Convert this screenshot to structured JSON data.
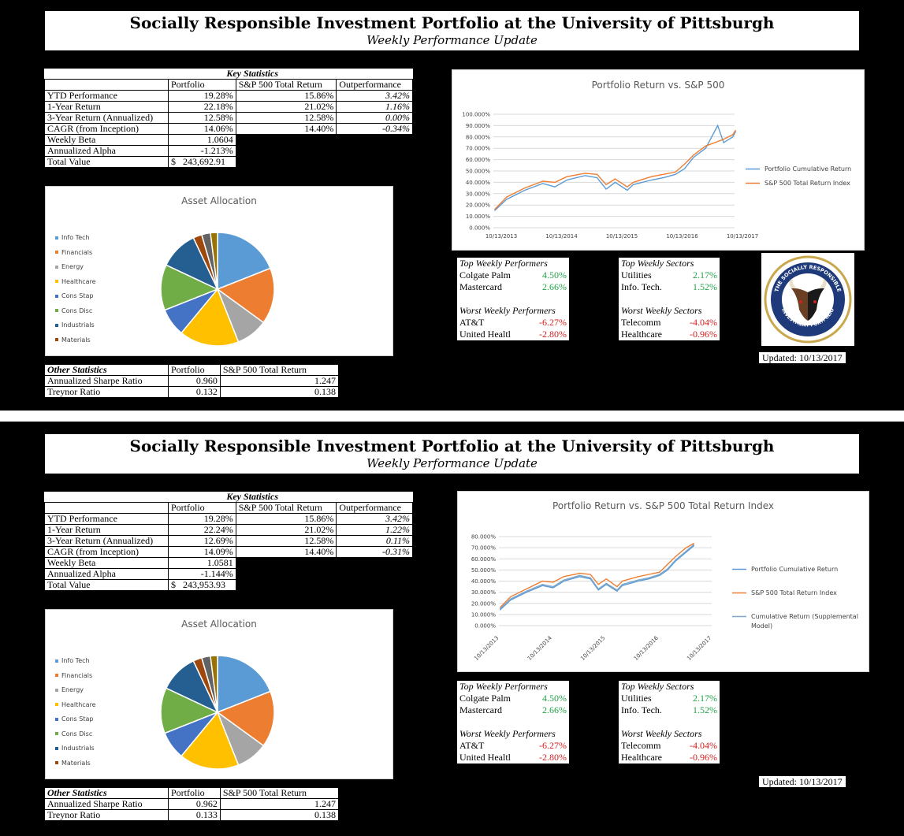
{
  "title": "Socially Responsible Investment Portfolio at the University of Pittsburgh",
  "subtitle": "Weekly Performance Update",
  "reports": [
    {
      "key_stats": {
        "heading": "Key Statistics",
        "col_portfolio": "Portfolio",
        "col_sp": "S&P 500 Total Return",
        "col_out": "Outperformance",
        "rows": [
          {
            "label": "YTD Performance",
            "portfolio": "19.28%",
            "sp": "15.86%",
            "out": "3.42%"
          },
          {
            "label": "1-Year Return",
            "portfolio": "22.18%",
            "sp": "21.02%",
            "out": "1.16%"
          },
          {
            "label": "3-Year Return (Annualized)",
            "portfolio": "12.58%",
            "sp": "12.58%",
            "out": "0.00%"
          },
          {
            "label": "CAGR (from Inception)",
            "portfolio": "14.06%",
            "sp": "14.40%",
            "out": "-0.34%"
          }
        ],
        "beta_label": "Weekly Beta",
        "beta": "1.0604",
        "alpha_label": "Annualized Alpha",
        "alpha": "-1.213%",
        "total_label": "Total Value",
        "total_currency": "$",
        "total": "243,692.91"
      },
      "allocation": {
        "title": "Asset Allocation",
        "legend": [
          "Info Tech",
          "Financials",
          "Energy",
          "Healthcare",
          "Cons Stap",
          "Cons Disc",
          "Industrials",
          "Materials"
        ],
        "slices": [
          {
            "name": "Info Tech",
            "value": 19,
            "color": "#5b9bd5"
          },
          {
            "name": "Financials",
            "value": 16,
            "color": "#ed7d31"
          },
          {
            "name": "Energy",
            "value": 9,
            "color": "#a5a5a5"
          },
          {
            "name": "Healthcare",
            "value": 17,
            "color": "#ffc000"
          },
          {
            "name": "Cons Stap",
            "value": 8,
            "color": "#4472c4"
          },
          {
            "name": "Cons Disc",
            "value": 13,
            "color": "#70ad47"
          },
          {
            "name": "Industrials",
            "value": 11,
            "color": "#255e91"
          },
          {
            "name": "Materials",
            "value": 2.5,
            "color": "#9e480e"
          },
          {
            "name": "",
            "value": 2.5,
            "color": "#636363"
          },
          {
            "name": "",
            "value": 2,
            "color": "#997300"
          }
        ]
      },
      "other_stats": {
        "heading": "Other Statistics",
        "col_portfolio": "Portfolio",
        "col_sp": "S&P 500 Total Return",
        "rows": [
          {
            "label": "Annualized Sharpe Ratio",
            "portfolio": "0.960",
            "sp": "1.247"
          },
          {
            "label": "Treynor Ratio",
            "portfolio": "0.132",
            "sp": "0.138"
          }
        ]
      },
      "chart": {
        "title": "Portfolio Return vs. S&P 500",
        "y_ticks": [
          "100.000%",
          "90.000%",
          "80.000%",
          "70.000%",
          "60.000%",
          "50.000%",
          "40.000%",
          "30.000%",
          "20.000%",
          "10.000%",
          "0.000%"
        ],
        "x_ticks": [
          "10/13/2013",
          "10/13/2014",
          "10/13/2015",
          "10/13/2016",
          "10/13/2017"
        ],
        "legend": [
          "Portfolio Cumulative Return",
          "S&P  500 Total Return Index"
        ],
        "ylim": [
          0,
          100
        ]
      },
      "top_performers": {
        "heading": "Top Weekly Performers",
        "items": [
          {
            "name": "Colgate Palm",
            "value": "4.50%"
          },
          {
            "name": "Mastercard",
            "value": "2.66%"
          }
        ]
      },
      "worst_performers": {
        "heading": "Worst Weekly Performers",
        "items": [
          {
            "name": "AT&T",
            "value": "-6.27%"
          },
          {
            "name": "United Healtl",
            "value": "-2.80%"
          }
        ]
      },
      "top_sectors": {
        "heading": "Top Weekly Sectors",
        "items": [
          {
            "name": "Utilities",
            "value": "2.17%"
          },
          {
            "name": "Info. Tech.",
            "value": "1.52%"
          }
        ]
      },
      "worst_sectors": {
        "heading": "Worst Weekly Sectors",
        "items": [
          {
            "name": "Telecomm",
            "value": "-4.04%"
          },
          {
            "name": "Healthcare",
            "value": "-0.96%"
          }
        ]
      },
      "logo": {
        "ring_text_top": "THE SOCIALLY RESPONSIBLE",
        "ring_text_bottom": "INVESTMENT PORTFOLIO"
      },
      "updated": "Updated:  10/13/2017"
    },
    {
      "key_stats": {
        "heading": "Key Statistics",
        "col_portfolio": "Portfolio",
        "col_sp": "S&P 500 Total Return",
        "col_out": "Outperformance",
        "rows": [
          {
            "label": "YTD Performance",
            "portfolio": "19.28%",
            "sp": "15.86%",
            "out": "3.42%"
          },
          {
            "label": "1-Year Return",
            "portfolio": "22.24%",
            "sp": "21.02%",
            "out": "1.22%"
          },
          {
            "label": "3-Year Return (Annualized)",
            "portfolio": "12.69%",
            "sp": "12.58%",
            "out": "0.11%"
          },
          {
            "label": "CAGR (from Inception)",
            "portfolio": "14.09%",
            "sp": "14.40%",
            "out": "-0.31%"
          }
        ],
        "beta_label": "Weekly Beta",
        "beta": "1.0581",
        "alpha_label": "Annualized Alpha",
        "alpha": "-1.144%",
        "total_label": "Total Value",
        "total_currency": "$",
        "total": "243,953.93"
      },
      "allocation": {
        "title": "Asset Allocation",
        "legend": [
          "Info Tech",
          "Financials",
          "Energy",
          "Healthcare",
          "Cons Stap",
          "Cons Disc",
          "Industrials",
          "Materials"
        ],
        "slices": [
          {
            "name": "Info Tech",
            "value": 19,
            "color": "#5b9bd5"
          },
          {
            "name": "Financials",
            "value": 16,
            "color": "#ed7d31"
          },
          {
            "name": "Energy",
            "value": 9,
            "color": "#a5a5a5"
          },
          {
            "name": "Healthcare",
            "value": 17,
            "color": "#ffc000"
          },
          {
            "name": "Cons Stap",
            "value": 8,
            "color": "#4472c4"
          },
          {
            "name": "Cons Disc",
            "value": 13,
            "color": "#70ad47"
          },
          {
            "name": "Industrials",
            "value": 11,
            "color": "#255e91"
          },
          {
            "name": "Materials",
            "value": 2.5,
            "color": "#9e480e"
          },
          {
            "name": "",
            "value": 2.5,
            "color": "#636363"
          },
          {
            "name": "",
            "value": 2,
            "color": "#997300"
          }
        ]
      },
      "other_stats": {
        "heading": "Other Statistics",
        "col_portfolio": "Portfolio",
        "col_sp": "S&P 500 Total Return",
        "rows": [
          {
            "label": "Annualized Sharpe Ratio",
            "portfolio": "0.962",
            "sp": "1.247"
          },
          {
            "label": "Treynor Ratio",
            "portfolio": "0.133",
            "sp": "0.138"
          }
        ]
      },
      "chart": {
        "title": "Portfolio Return vs. S&P 500 Total Return Index",
        "y_ticks": [
          "80.000%",
          "70.000%",
          "60.000%",
          "50.000%",
          "40.000%",
          "30.000%",
          "20.000%",
          "10.000%",
          "0.000%"
        ],
        "x_ticks": [
          "10/13/2013",
          "10/13/2014",
          "10/13/2015",
          "10/13/2016",
          "10/13/2017"
        ],
        "legend": [
          "Portfolio Cumulative Return",
          "S&P  500 Total Return Index",
          "Cumulative Return (Supplemental",
          "Model)"
        ],
        "ylim": [
          0,
          80
        ]
      },
      "top_performers": {
        "heading": "Top Weekly Performers",
        "items": [
          {
            "name": "Colgate Palm",
            "value": "4.50%"
          },
          {
            "name": "Mastercard",
            "value": "2.66%"
          }
        ]
      },
      "worst_performers": {
        "heading": "Worst Weekly Performers",
        "items": [
          {
            "name": "AT&T",
            "value": "-6.27%"
          },
          {
            "name": "United Healtl",
            "value": "-2.80%"
          }
        ]
      },
      "top_sectors": {
        "heading": "Top Weekly Sectors",
        "items": [
          {
            "name": "Utilities",
            "value": "2.17%"
          },
          {
            "name": "Info. Tech.",
            "value": "1.52%"
          }
        ]
      },
      "worst_sectors": {
        "heading": "Worst Weekly Sectors",
        "items": [
          {
            "name": "Telecomm",
            "value": "-4.04%"
          },
          {
            "name": "Healthcare",
            "value": "-0.96%"
          }
        ]
      },
      "updated": "Updated:  10/13/2017"
    }
  ],
  "chart_data": [
    {
      "type": "line",
      "title": "Portfolio Return vs. S&P 500",
      "x_range": [
        "10/13/2013",
        "10/13/2017"
      ],
      "ylim": [
        0,
        100
      ],
      "series": [
        {
          "name": "Portfolio Cumulative Return",
          "color": "#5b9bd5",
          "x": [
            2013.8,
            2014.0,
            2014.3,
            2014.6,
            2014.8,
            2015.0,
            2015.3,
            2015.5,
            2015.65,
            2015.8,
            2016.0,
            2016.1,
            2016.4,
            2016.6,
            2016.8,
            2016.95,
            2017.1,
            2017.3,
            2017.5,
            2017.6,
            2017.75,
            2017.8
          ],
          "y": [
            15,
            25,
            33,
            39,
            36,
            42,
            46,
            44,
            34,
            40,
            33,
            38,
            42,
            44,
            47,
            52,
            62,
            70,
            90,
            75,
            80,
            85
          ]
        },
        {
          "name": "S&P  500 Total Return Index",
          "color": "#ed7d31",
          "x": [
            2013.8,
            2014.0,
            2014.3,
            2014.6,
            2014.8,
            2015.0,
            2015.3,
            2015.5,
            2015.65,
            2015.8,
            2016.0,
            2016.1,
            2016.4,
            2016.6,
            2016.8,
            2016.95,
            2017.1,
            2017.3,
            2017.5,
            2017.6,
            2017.75,
            2017.8
          ],
          "y": [
            16,
            27,
            35,
            41,
            40,
            45,
            48,
            47,
            38,
            43,
            36,
            40,
            45,
            47,
            49,
            56,
            64,
            72,
            76,
            78,
            82,
            86
          ]
        }
      ]
    },
    {
      "type": "line",
      "title": "Portfolio Return vs. S&P 500 Total Return Index",
      "x_range": [
        "10/13/2013",
        "10/13/2017"
      ],
      "ylim": [
        0,
        80
      ],
      "series": [
        {
          "name": "Portfolio Cumulative Return",
          "color": "#5b9bd5",
          "x": [
            2013.8,
            2014.0,
            2014.3,
            2014.6,
            2014.8,
            2015.0,
            2015.3,
            2015.5,
            2015.65,
            2015.8,
            2016.0,
            2016.1,
            2016.4,
            2016.6,
            2016.8,
            2016.95,
            2017.1,
            2017.3,
            2017.45
          ],
          "y": [
            14,
            23,
            30,
            36,
            34,
            40,
            44,
            42,
            32,
            37,
            31,
            36,
            40,
            42,
            45,
            50,
            58,
            66,
            72
          ]
        },
        {
          "name": "S&P  500 Total Return Index",
          "color": "#ed7d31",
          "x": [
            2013.8,
            2014.0,
            2014.3,
            2014.6,
            2014.8,
            2015.0,
            2015.3,
            2015.5,
            2015.65,
            2015.8,
            2016.0,
            2016.1,
            2016.4,
            2016.6,
            2016.8,
            2016.95,
            2017.1,
            2017.3,
            2017.45
          ],
          "y": [
            16,
            26,
            33,
            40,
            39,
            44,
            47,
            46,
            37,
            42,
            35,
            40,
            44,
            46,
            48,
            55,
            62,
            70,
            74
          ]
        },
        {
          "name": "Cumulative Return (Supplemental Model)",
          "color": "#7fa7c9",
          "x": [
            2013.8,
            2014.0,
            2014.3,
            2014.6,
            2014.8,
            2015.0,
            2015.3,
            2015.5,
            2015.65,
            2015.8,
            2016.0,
            2016.1,
            2016.4,
            2016.6,
            2016.8,
            2016.95,
            2017.1,
            2017.3,
            2017.45
          ],
          "y": [
            15,
            24,
            31,
            37,
            35,
            41,
            45,
            43,
            33,
            38,
            32,
            37,
            41,
            43,
            46,
            51,
            59,
            67,
            73
          ]
        }
      ]
    }
  ]
}
